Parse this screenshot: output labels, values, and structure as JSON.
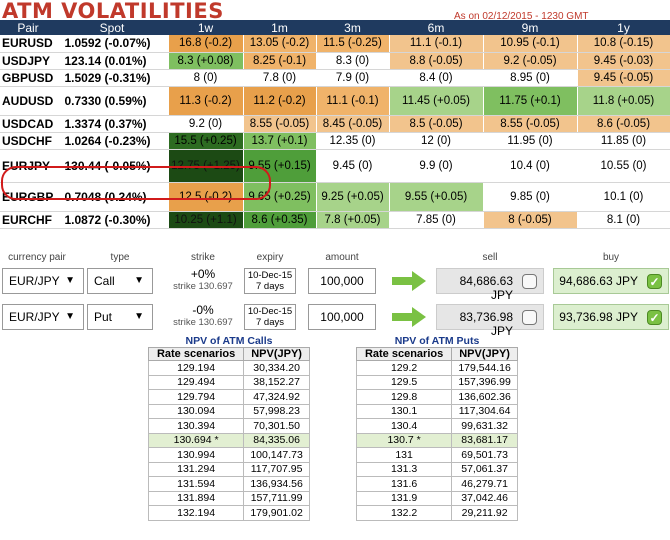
{
  "title": "ATM VOLATILITIES",
  "as_of": "As on 02/12/2015 - 1230 GMT",
  "vol_table": {
    "headers": [
      "Pair",
      "Spot",
      "1w",
      "1m",
      "3m",
      "6m",
      "9m",
      "1y"
    ],
    "rows": [
      {
        "pair": "EURUSD",
        "spot": "1.0592 (-0.07%)",
        "cells": [
          "16.8 (-0.2)",
          "13.05 (-0.2)",
          "11.5 (-0.25)",
          "11.1 (-0.1)",
          "10.95 (-0.1)",
          "10.8 (-0.15)"
        ],
        "colors": [
          "c-o3",
          "c-o2",
          "c-o2",
          "c-o1",
          "c-o1",
          "c-o1"
        ]
      },
      {
        "pair": "USDJPY",
        "spot": "123.14 (0.01%)",
        "cells": [
          "8.3 (+0.08)",
          "8.25 (-0.1)",
          "8.3 (0)",
          "8.8 (-0.05)",
          "9.2 (-0.05)",
          "9.45 (-0.03)"
        ],
        "colors": [
          "c-g2",
          "c-o2",
          "c-wh",
          "c-o1",
          "c-o1",
          "c-o1"
        ]
      },
      {
        "pair": "GBPUSD",
        "spot": "1.5029 (-0.31%)",
        "cells": [
          "8 (0)",
          "7.8 (0)",
          "7.9 (0)",
          "8.4 (0)",
          "8.95 (0)",
          "9.45 (-0.05)"
        ],
        "colors": [
          "c-wh",
          "c-wh",
          "c-wh",
          "c-wh",
          "c-wh",
          "c-o1"
        ]
      },
      {
        "pair": "AUDUSD",
        "spot": "0.7330 (0.59%)",
        "cells": [
          "11.3 (-0.2)",
          "11.2 (-0.2)",
          "11.1 (-0.1)",
          "11.45 (+0.05)",
          "11.75 (+0.1)",
          "11.8 (+0.05)"
        ],
        "colors": [
          "c-o3",
          "c-o3",
          "c-o2",
          "c-g1",
          "c-g2",
          "c-g1"
        ]
      },
      {
        "pair": "USDCAD",
        "spot": "1.3374 (0.37%)",
        "cells": [
          "9.2 (0)",
          "8.55 (-0.05)",
          "8.45 (-0.05)",
          "8.5 (-0.05)",
          "8.55 (-0.05)",
          "8.6 (-0.05)"
        ],
        "colors": [
          "c-wh",
          "c-o1",
          "c-o1",
          "c-o1",
          "c-o1",
          "c-o1"
        ]
      },
      {
        "pair": "USDCHF",
        "spot": "1.0264 (-0.23%)",
        "cells": [
          "15.5 (+0.25)",
          "13.7 (+0.1)",
          "12.35 (0)",
          "12 (0)",
          "11.95 (0)",
          "11.85 (0)"
        ],
        "colors": [
          "c-g4",
          "c-g2",
          "c-wh",
          "c-wh",
          "c-wh",
          "c-wh"
        ]
      },
      {
        "pair": "EURJPY",
        "spot": "130.44 (-0.05%)",
        "cells": [
          "12.75 (+1.25)",
          "9.55 (+0.15)",
          "9.45 (0)",
          "9.9 (0)",
          "10.4 (0)",
          "10.55 (0)"
        ],
        "colors": [
          "c-g5",
          "c-g3",
          "c-wh",
          "c-wh",
          "c-wh",
          "c-wh"
        ]
      },
      {
        "pair": "EURGBP",
        "spot": "0.7048 (0.24%)",
        "cells": [
          "12.5 (-0.2)",
          "9.65 (+0.25)",
          "9.25 (+0.05)",
          "9.55 (+0.05)",
          "9.85 (0)",
          "10.1 (0)"
        ],
        "colors": [
          "c-o3",
          "c-g2",
          "c-g1",
          "c-g1",
          "c-wh",
          "c-wh"
        ]
      },
      {
        "pair": "EURCHF",
        "spot": "1.0872 (-0.30%)",
        "cells": [
          "10.25 (+1.1)",
          "8.6 (+0.35)",
          "7.8 (+0.05)",
          "7.85 (0)",
          "8 (-0.05)",
          "8.1 (0)"
        ],
        "colors": [
          "c-g5",
          "c-g3",
          "c-g1",
          "c-wh",
          "c-o1",
          "c-wh"
        ]
      }
    ]
  },
  "form_headers": {
    "currency_pair": "currency pair",
    "type": "type",
    "strike": "strike",
    "expiry": "expiry",
    "amount": "amount",
    "sell": "sell",
    "buy": "buy"
  },
  "pricers": [
    {
      "pair": "EUR/JPY",
      "type": "Call",
      "strike_pct": "+0%",
      "strike_val": "strike 130.697",
      "expiry_date": "10-Dec-15",
      "expiry_days": "7 days",
      "amount": "100,000",
      "sell": "84,686.63 JPY",
      "buy": "94,686.63 JPY"
    },
    {
      "pair": "EUR/JPY",
      "type": "Put",
      "strike_pct": "-0%",
      "strike_val": "strike 130.697",
      "expiry_date": "10-Dec-15",
      "expiry_days": "7 days",
      "amount": "100,000",
      "sell": "83,736.98 JPY",
      "buy": "93,736.98 JPY"
    }
  ],
  "npv_calls": {
    "title": "NPV of ATM Calls",
    "headers": [
      "Rate scenarios",
      "NPV(JPY)"
    ],
    "rows": [
      [
        "129.194",
        "30,334.20"
      ],
      [
        "129.494",
        "38,152.27"
      ],
      [
        "129.794",
        "47,324.92"
      ],
      [
        "130.094",
        "57,998.23"
      ],
      [
        "130.394",
        "70,301.50"
      ],
      [
        "130.694 *",
        "84,335.06"
      ],
      [
        "130.994",
        "100,147.73"
      ],
      [
        "131.294",
        "117,707.95"
      ],
      [
        "131.594",
        "136,934.56"
      ],
      [
        "131.894",
        "157,711.99"
      ],
      [
        "132.194",
        "179,901.02"
      ]
    ]
  },
  "npv_puts": {
    "title": "NPV of ATM Puts",
    "headers": [
      "Rate scenarios",
      "NPV(JPY)"
    ],
    "rows": [
      [
        "129.2",
        "179,544.16"
      ],
      [
        "129.5",
        "157,396.99"
      ],
      [
        "129.8",
        "136,602.36"
      ],
      [
        "130.1",
        "117,304.64"
      ],
      [
        "130.4",
        "99,631.32"
      ],
      [
        "130.7 *",
        "83,681.17"
      ],
      [
        "131",
        "69,501.73"
      ],
      [
        "131.3",
        "57,061.37"
      ],
      [
        "131.6",
        "46,279.71"
      ],
      [
        "131.9",
        "37,042.46"
      ],
      [
        "132.2",
        "29,211.92"
      ]
    ]
  },
  "colors": {
    "title": "#c0392b",
    "header_bg": "#1f3a5f",
    "highlight_ring": "#d11b1b",
    "arrow": "#7ac143"
  }
}
